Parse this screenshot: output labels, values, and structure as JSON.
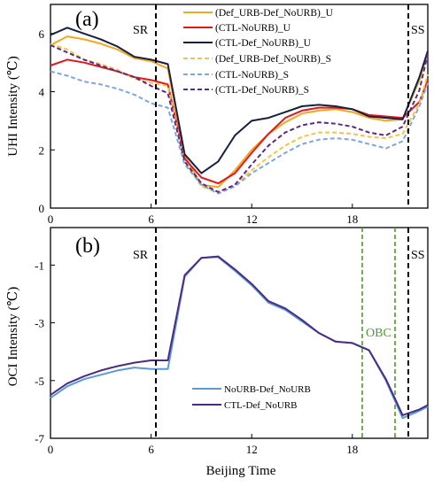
{
  "chart_data": [
    {
      "type": "line",
      "panel_label": "(a)",
      "ylabel": "UHI Intensity (℃)",
      "xlabel": "",
      "xlim": [
        0,
        22.5
      ],
      "ylim": [
        0,
        7
      ],
      "xticks": [
        0,
        6,
        12,
        18
      ],
      "yticks": [
        0,
        2,
        4,
        6
      ],
      "grid": false,
      "legend_position": "top-right",
      "annotations": [
        {
          "text": "SR",
          "x": 6.5
        },
        {
          "text": "SS",
          "x": 21.7
        }
      ],
      "x": [
        0,
        1,
        2,
        3,
        4,
        5,
        6,
        7,
        8,
        9,
        10,
        11,
        12,
        13,
        14,
        15,
        16,
        17,
        18,
        19,
        20,
        21,
        22,
        22.5
      ],
      "series": [
        {
          "name": "(Def_URB-Def_NoURB)_U",
          "color": "#f5a623",
          "style": "solid",
          "values": [
            5.6,
            5.9,
            5.8,
            5.65,
            5.45,
            5.15,
            5.05,
            4.8,
            1.8,
            0.8,
            0.72,
            1.3,
            2.0,
            2.55,
            2.95,
            3.25,
            3.35,
            3.4,
            3.3,
            3.1,
            3.0,
            3.05,
            4.4,
            5.3
          ]
        },
        {
          "name": "(CTL-NoURB)_U",
          "color": "#e0191c",
          "style": "solid",
          "values": [
            4.9,
            5.1,
            5.0,
            4.85,
            4.7,
            4.5,
            4.4,
            4.25,
            1.7,
            1.05,
            0.85,
            1.2,
            1.9,
            2.55,
            3.1,
            3.35,
            3.45,
            3.45,
            3.4,
            3.2,
            3.15,
            3.1,
            3.65,
            4.4
          ]
        },
        {
          "name": "(CTL-Def_NoURB)_U",
          "color": "#16213f",
          "style": "solid",
          "values": [
            5.95,
            6.2,
            6.0,
            5.8,
            5.55,
            5.2,
            5.1,
            4.95,
            1.85,
            1.2,
            1.6,
            2.5,
            3.0,
            3.1,
            3.3,
            3.5,
            3.55,
            3.5,
            3.4,
            3.15,
            3.1,
            3.05,
            4.5,
            5.4
          ]
        },
        {
          "name": "(Def_URB-Def_NoURB)_S",
          "color": "#f5c542",
          "style": "dashed",
          "values": [
            5.65,
            5.45,
            5.1,
            4.95,
            4.75,
            4.45,
            4.3,
            4.2,
            1.6,
            0.75,
            0.55,
            0.8,
            1.3,
            1.75,
            2.15,
            2.45,
            2.6,
            2.6,
            2.55,
            2.45,
            2.4,
            2.55,
            3.6,
            4.6
          ]
        },
        {
          "name": "(CTL-NoURB)_S",
          "color": "#7ea6e0",
          "style": "dashed",
          "values": [
            4.7,
            4.55,
            4.35,
            4.25,
            4.1,
            3.9,
            3.6,
            3.45,
            1.5,
            0.8,
            0.5,
            0.75,
            1.2,
            1.55,
            1.9,
            2.2,
            2.35,
            2.4,
            2.35,
            2.2,
            2.05,
            2.3,
            3.5,
            4.3
          ]
        },
        {
          "name": "(CTL-Def_NoURB)_S",
          "color": "#5b2a86",
          "style": "dashed",
          "values": [
            5.6,
            5.35,
            5.1,
            4.9,
            4.7,
            4.5,
            4.2,
            3.95,
            1.6,
            0.85,
            0.55,
            0.8,
            1.5,
            2.15,
            2.6,
            2.85,
            2.95,
            2.9,
            2.8,
            2.6,
            2.5,
            2.8,
            4.05,
            5.3
          ]
        }
      ]
    },
    {
      "type": "line",
      "panel_label": "(b)",
      "ylabel": "OCI Intensity (℃)",
      "xlabel": "Beijing Time",
      "xlim": [
        0,
        22.5
      ],
      "ylim": [
        -7,
        0.3
      ],
      "xticks": [
        0,
        6,
        12,
        18
      ],
      "yticks": [
        -1,
        -3,
        -5,
        -7
      ],
      "grid": false,
      "legend_position": "bottom-center",
      "annotations": [
        {
          "text": "SR",
          "x": 6.5
        },
        {
          "text": "SS",
          "x": 21.7
        },
        {
          "text": "OBC",
          "x_start": 19.1,
          "x_end": 20.9
        }
      ],
      "x": [
        0,
        1,
        2,
        3,
        4,
        5,
        6,
        7,
        8,
        9,
        10,
        11,
        12,
        13,
        14,
        15,
        16,
        17,
        18,
        19,
        20,
        21,
        22,
        22.5
      ],
      "series": [
        {
          "name": "NoURB-Def_NoURB",
          "color": "#5b9bd5",
          "values": [
            -5.6,
            -5.2,
            -4.95,
            -4.8,
            -4.65,
            -4.55,
            -4.6,
            -4.6,
            -1.4,
            -0.75,
            -0.72,
            -1.2,
            -1.7,
            -2.3,
            -2.55,
            -2.95,
            -3.35,
            -3.65,
            -3.7,
            -3.95,
            -5.0,
            -6.3,
            -6.05,
            -5.9
          ]
        },
        {
          "name": "CTL-Def_NoURB",
          "color": "#4b2c85",
          "values": [
            -5.5,
            -5.1,
            -4.85,
            -4.65,
            -4.5,
            -4.38,
            -4.3,
            -4.3,
            -1.35,
            -0.75,
            -0.7,
            -1.15,
            -1.65,
            -2.25,
            -2.5,
            -2.9,
            -3.35,
            -3.65,
            -3.7,
            -3.95,
            -4.95,
            -6.2,
            -6.0,
            -5.85
          ]
        }
      ]
    }
  ]
}
